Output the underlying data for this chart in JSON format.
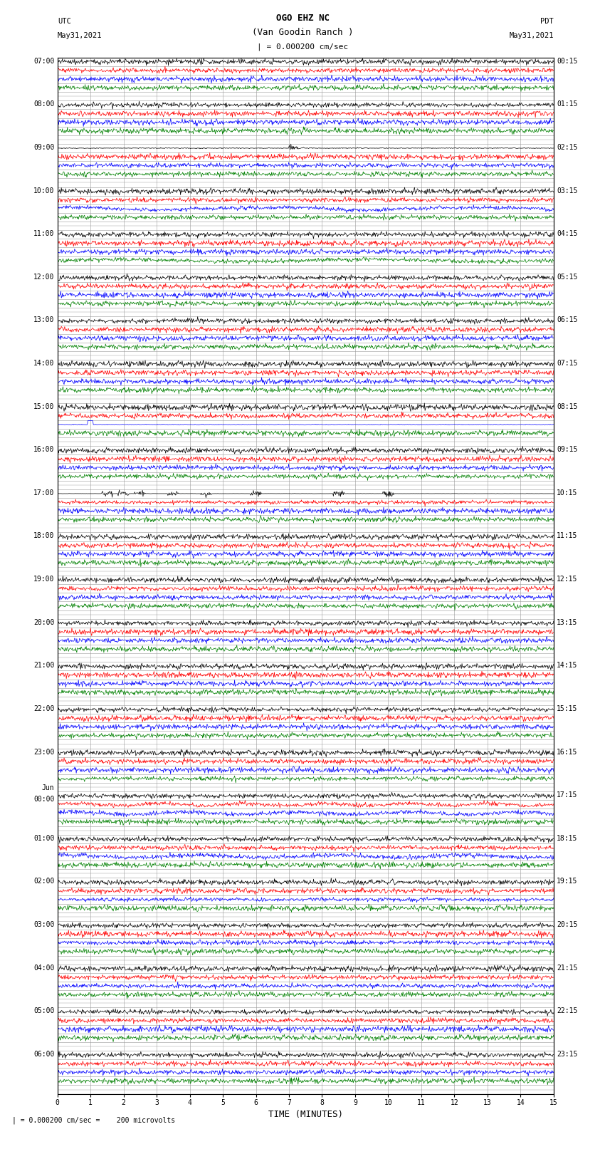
{
  "title_line1": "OGO EHZ NC",
  "title_line2": "(Van Goodin Ranch )",
  "title_line3": "| = 0.000200 cm/sec",
  "left_header_top": "UTC",
  "left_header_bot": "May31,2021",
  "right_header_top": "PDT",
  "right_header_bot": "May31,2021",
  "footer": "| = 0.000200 cm/sec =    200 microvolts",
  "xlabel": "TIME (MINUTES)",
  "utc_label_list": [
    "07:00",
    "08:00",
    "09:00",
    "10:00",
    "11:00",
    "12:00",
    "13:00",
    "14:00",
    "15:00",
    "16:00",
    "17:00",
    "18:00",
    "19:00",
    "20:00",
    "21:00",
    "22:00",
    "23:00",
    "Jun\n00:00",
    "01:00",
    "02:00",
    "03:00",
    "04:00",
    "05:00",
    "06:00"
  ],
  "pdt_label_list": [
    "00:15",
    "01:15",
    "02:15",
    "03:15",
    "04:15",
    "05:15",
    "06:15",
    "07:15",
    "08:15",
    "09:15",
    "10:15",
    "11:15",
    "12:15",
    "13:15",
    "14:15",
    "15:15",
    "16:15",
    "17:15",
    "18:15",
    "19:15",
    "20:15",
    "21:15",
    "22:15",
    "23:15"
  ],
  "n_hours": 24,
  "rows_per_hour": 5,
  "colors_per_hour": [
    "black",
    "red",
    "blue",
    "green"
  ],
  "bg_color": "white",
  "grid_color": "#999999",
  "text_color": "black",
  "fig_width": 8.5,
  "fig_height": 16.13,
  "dpi": 100,
  "xmin": 0,
  "xmax": 15,
  "n_points": 900,
  "xlabel_fontsize": 9,
  "title_fontsize": 9,
  "tick_fontsize": 7,
  "header_fontsize": 7.5,
  "label_fontsize": 7,
  "lw": 0.5
}
